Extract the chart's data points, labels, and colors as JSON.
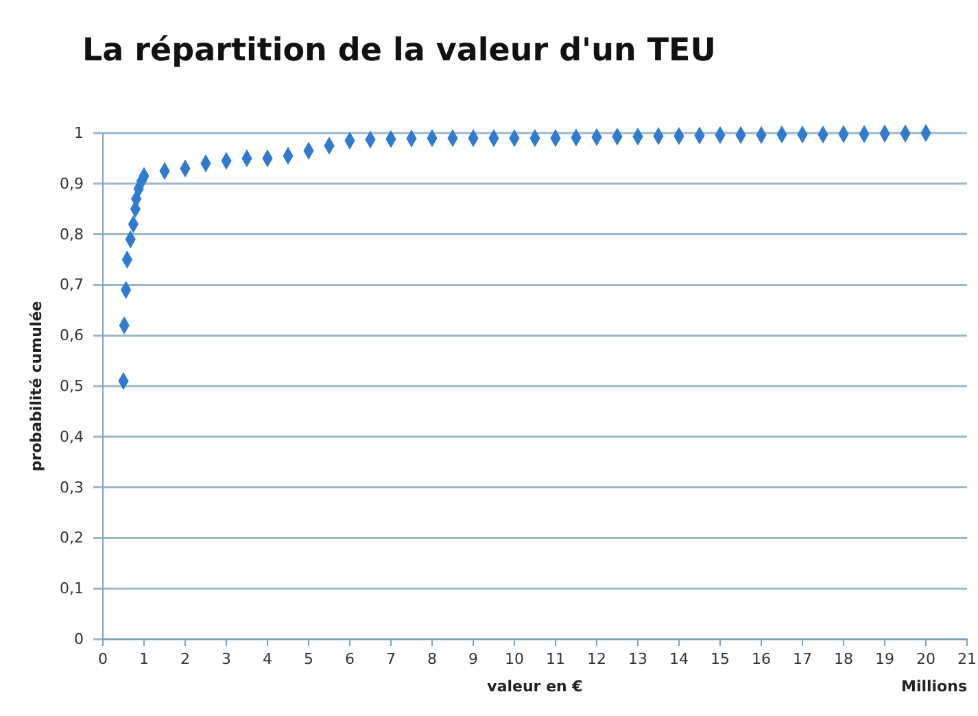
{
  "chart_data": {
    "type": "scatter",
    "title": "La répartition de la valeur d'un TEU",
    "xlabel": "valeur en €",
    "ylabel": "probabilité cumulée",
    "annotations": [
      "Millions"
    ],
    "x": [
      0.5,
      0.52,
      0.56,
      0.59,
      0.67,
      0.74,
      0.79,
      0.81,
      0.87,
      0.94,
      1.0,
      1.5,
      2.0,
      2.5,
      3.0,
      3.5,
      4.0,
      4.5,
      5.0,
      5.5,
      6.0,
      6.5,
      7.0,
      7.5,
      8.0,
      8.5,
      9.0,
      9.5,
      10.0,
      10.5,
      11.0,
      11.5,
      12.0,
      12.5,
      13.0,
      13.5,
      14.0,
      14.5,
      15.0,
      15.5,
      16.0,
      16.5,
      17.0,
      17.5,
      18.0,
      18.5,
      19.0,
      19.5,
      20.0
    ],
    "series": [
      {
        "color": "#2e7bcf",
        "values": [
          0.51,
          0.62,
          0.69,
          0.75,
          0.79,
          0.82,
          0.85,
          0.87,
          0.89,
          0.905,
          0.915,
          0.925,
          0.93,
          0.94,
          0.945,
          0.95,
          0.95,
          0.955,
          0.965,
          0.975,
          0.985,
          0.987,
          0.988,
          0.989,
          0.99,
          0.99,
          0.99,
          0.99,
          0.99,
          0.99,
          0.99,
          0.991,
          0.992,
          0.993,
          0.993,
          0.994,
          0.994,
          0.995,
          0.996,
          0.996,
          0.996,
          0.997,
          0.997,
          0.997,
          0.998,
          0.998,
          0.999,
          0.999,
          1.0
        ]
      }
    ],
    "xlim": [
      0,
      21
    ],
    "xticks": [
      0,
      1,
      2,
      3,
      4,
      5,
      6,
      7,
      8,
      9,
      10,
      11,
      12,
      13,
      14,
      15,
      16,
      17,
      18,
      19,
      20,
      21
    ],
    "ylim": [
      0,
      1
    ],
    "yticks": [
      {
        "value": 0,
        "label": "0"
      },
      {
        "value": 0.1,
        "label": "0,1"
      },
      {
        "value": 0.2,
        "label": "0,2"
      },
      {
        "value": 0.3,
        "label": "0,3"
      },
      {
        "value": 0.4,
        "label": "0,4"
      },
      {
        "value": 0.5,
        "label": "0,5"
      },
      {
        "value": 0.6,
        "label": "0,6"
      },
      {
        "value": 0.7,
        "label": "0,7"
      },
      {
        "value": 0.8,
        "label": "0,8"
      },
      {
        "value": 0.9,
        "label": "0,9"
      },
      {
        "value": 1,
        "label": "1"
      }
    ],
    "grid": "y",
    "marker": "diamond"
  }
}
